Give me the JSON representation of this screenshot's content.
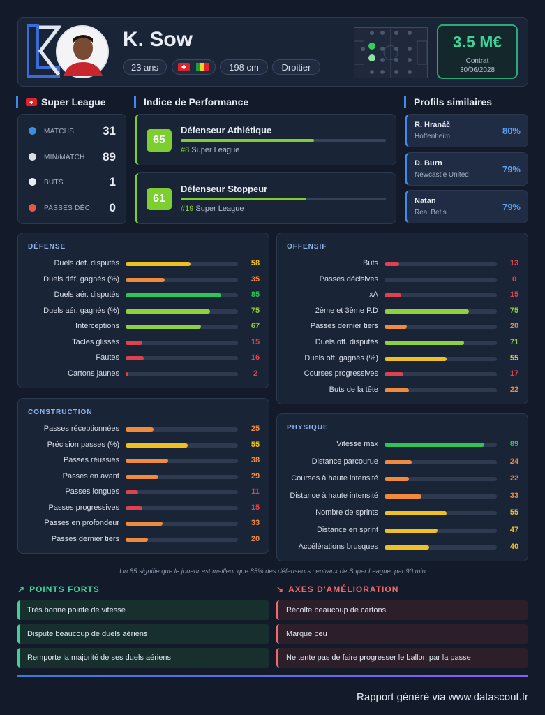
{
  "header": {
    "name": "K. Sow",
    "age": "23 ans",
    "height": "198 cm",
    "foot": "Droitier",
    "value": "3.5 M€",
    "contract_label": "Contrat",
    "contract_date": "30/06/2028"
  },
  "league": {
    "title": "Super League",
    "stats": [
      {
        "label": "MATCHS",
        "value": 31
      },
      {
        "label": "MIN/MATCH",
        "value": 89
      },
      {
        "label": "BUTS",
        "value": 1
      },
      {
        "label": "PASSES DÉC.",
        "value": 0
      }
    ]
  },
  "performance": {
    "title": "Indice de Performance",
    "items": [
      {
        "score": 65,
        "role": "Défenseur Athlétique",
        "rank": "#8",
        "league": "Super League"
      },
      {
        "score": 61,
        "role": "Défenseur Stoppeur",
        "rank": "#19",
        "league": "Super League"
      }
    ]
  },
  "similar": {
    "title": "Profils similaires",
    "players": [
      {
        "name": "R. Hranáč",
        "club": "Hoffenheim",
        "match": "80%"
      },
      {
        "name": "D. Burn",
        "club": "Newcastle United",
        "match": "79%"
      },
      {
        "name": "Natan",
        "club": "Real Betis",
        "match": "79%"
      }
    ]
  },
  "defense": {
    "title": "DÉFENSE",
    "items": [
      {
        "label": "Duels déf. disputés",
        "value": 58
      },
      {
        "label": "Duels déf. gagnés (%)",
        "value": 35
      },
      {
        "label": "Duels aér. disputés",
        "value": 85
      },
      {
        "label": "Duels aér. gagnés (%)",
        "value": 75
      },
      {
        "label": "Interceptions",
        "value": 67
      },
      {
        "label": "Tacles glissés",
        "value": 15
      },
      {
        "label": "Fautes",
        "value": 16
      },
      {
        "label": "Cartons jaunes",
        "value": 2
      }
    ]
  },
  "offensive": {
    "title": "OFFENSIF",
    "items": [
      {
        "label": "Buts",
        "value": 13
      },
      {
        "label": "Passes décisives",
        "value": 0
      },
      {
        "label": "xA",
        "value": 15
      },
      {
        "label": "2ème et 3ème P.D",
        "value": 75
      },
      {
        "label": "Passes dernier tiers",
        "value": 20
      },
      {
        "label": "Duels off. disputés",
        "value": 71
      },
      {
        "label": "Duels off. gagnés (%)",
        "value": 55
      },
      {
        "label": "Courses progressives",
        "value": 17
      },
      {
        "label": "Buts de la tête",
        "value": 22
      }
    ]
  },
  "construction": {
    "title": "CONSTRUCTION",
    "items": [
      {
        "label": "Passes réceptionnées",
        "value": 25
      },
      {
        "label": "Précision passes (%)",
        "value": 55
      },
      {
        "label": "Passes réussies",
        "value": 38
      },
      {
        "label": "Passes en avant",
        "value": 29
      },
      {
        "label": "Passes longues",
        "value": 11
      },
      {
        "label": "Passes progressives",
        "value": 15
      },
      {
        "label": "Passes en profondeur",
        "value": 33
      },
      {
        "label": "Passes dernier tiers",
        "value": 20
      }
    ]
  },
  "physique": {
    "title": "PHYSIQUE",
    "items": [
      {
        "label": "Vitesse max",
        "value": 89
      },
      {
        "label": "Distance parcourue",
        "value": 24
      },
      {
        "label": "Courses à haute intensité",
        "value": 22
      },
      {
        "label": "Distance à haute intensité",
        "value": 33
      },
      {
        "label": "Nombre de sprints",
        "value": 55
      },
      {
        "label": "Distance en sprint",
        "value": 47
      },
      {
        "label": "Accélérations brusques",
        "value": 40
      }
    ]
  },
  "footnote": "Un 85 signifie que le joueur est meilleur que 85% des défenseurs centraux de Super League, par 90 min",
  "strengths": {
    "title": "POINTS FORTS",
    "items": [
      "Très bonne pointe de vitesse",
      "Dispute beaucoup de duels aériens",
      "Remporte la majorité de ses duels aériens"
    ]
  },
  "improvements": {
    "title": "AXES D'AMÉLIORATION",
    "items": [
      "Récolte beaucoup de cartons",
      "Marque peu",
      "Ne tente pas de faire progresser le ballon par la passe"
    ]
  },
  "footer": "Rapport généré via www.datascout.fr"
}
